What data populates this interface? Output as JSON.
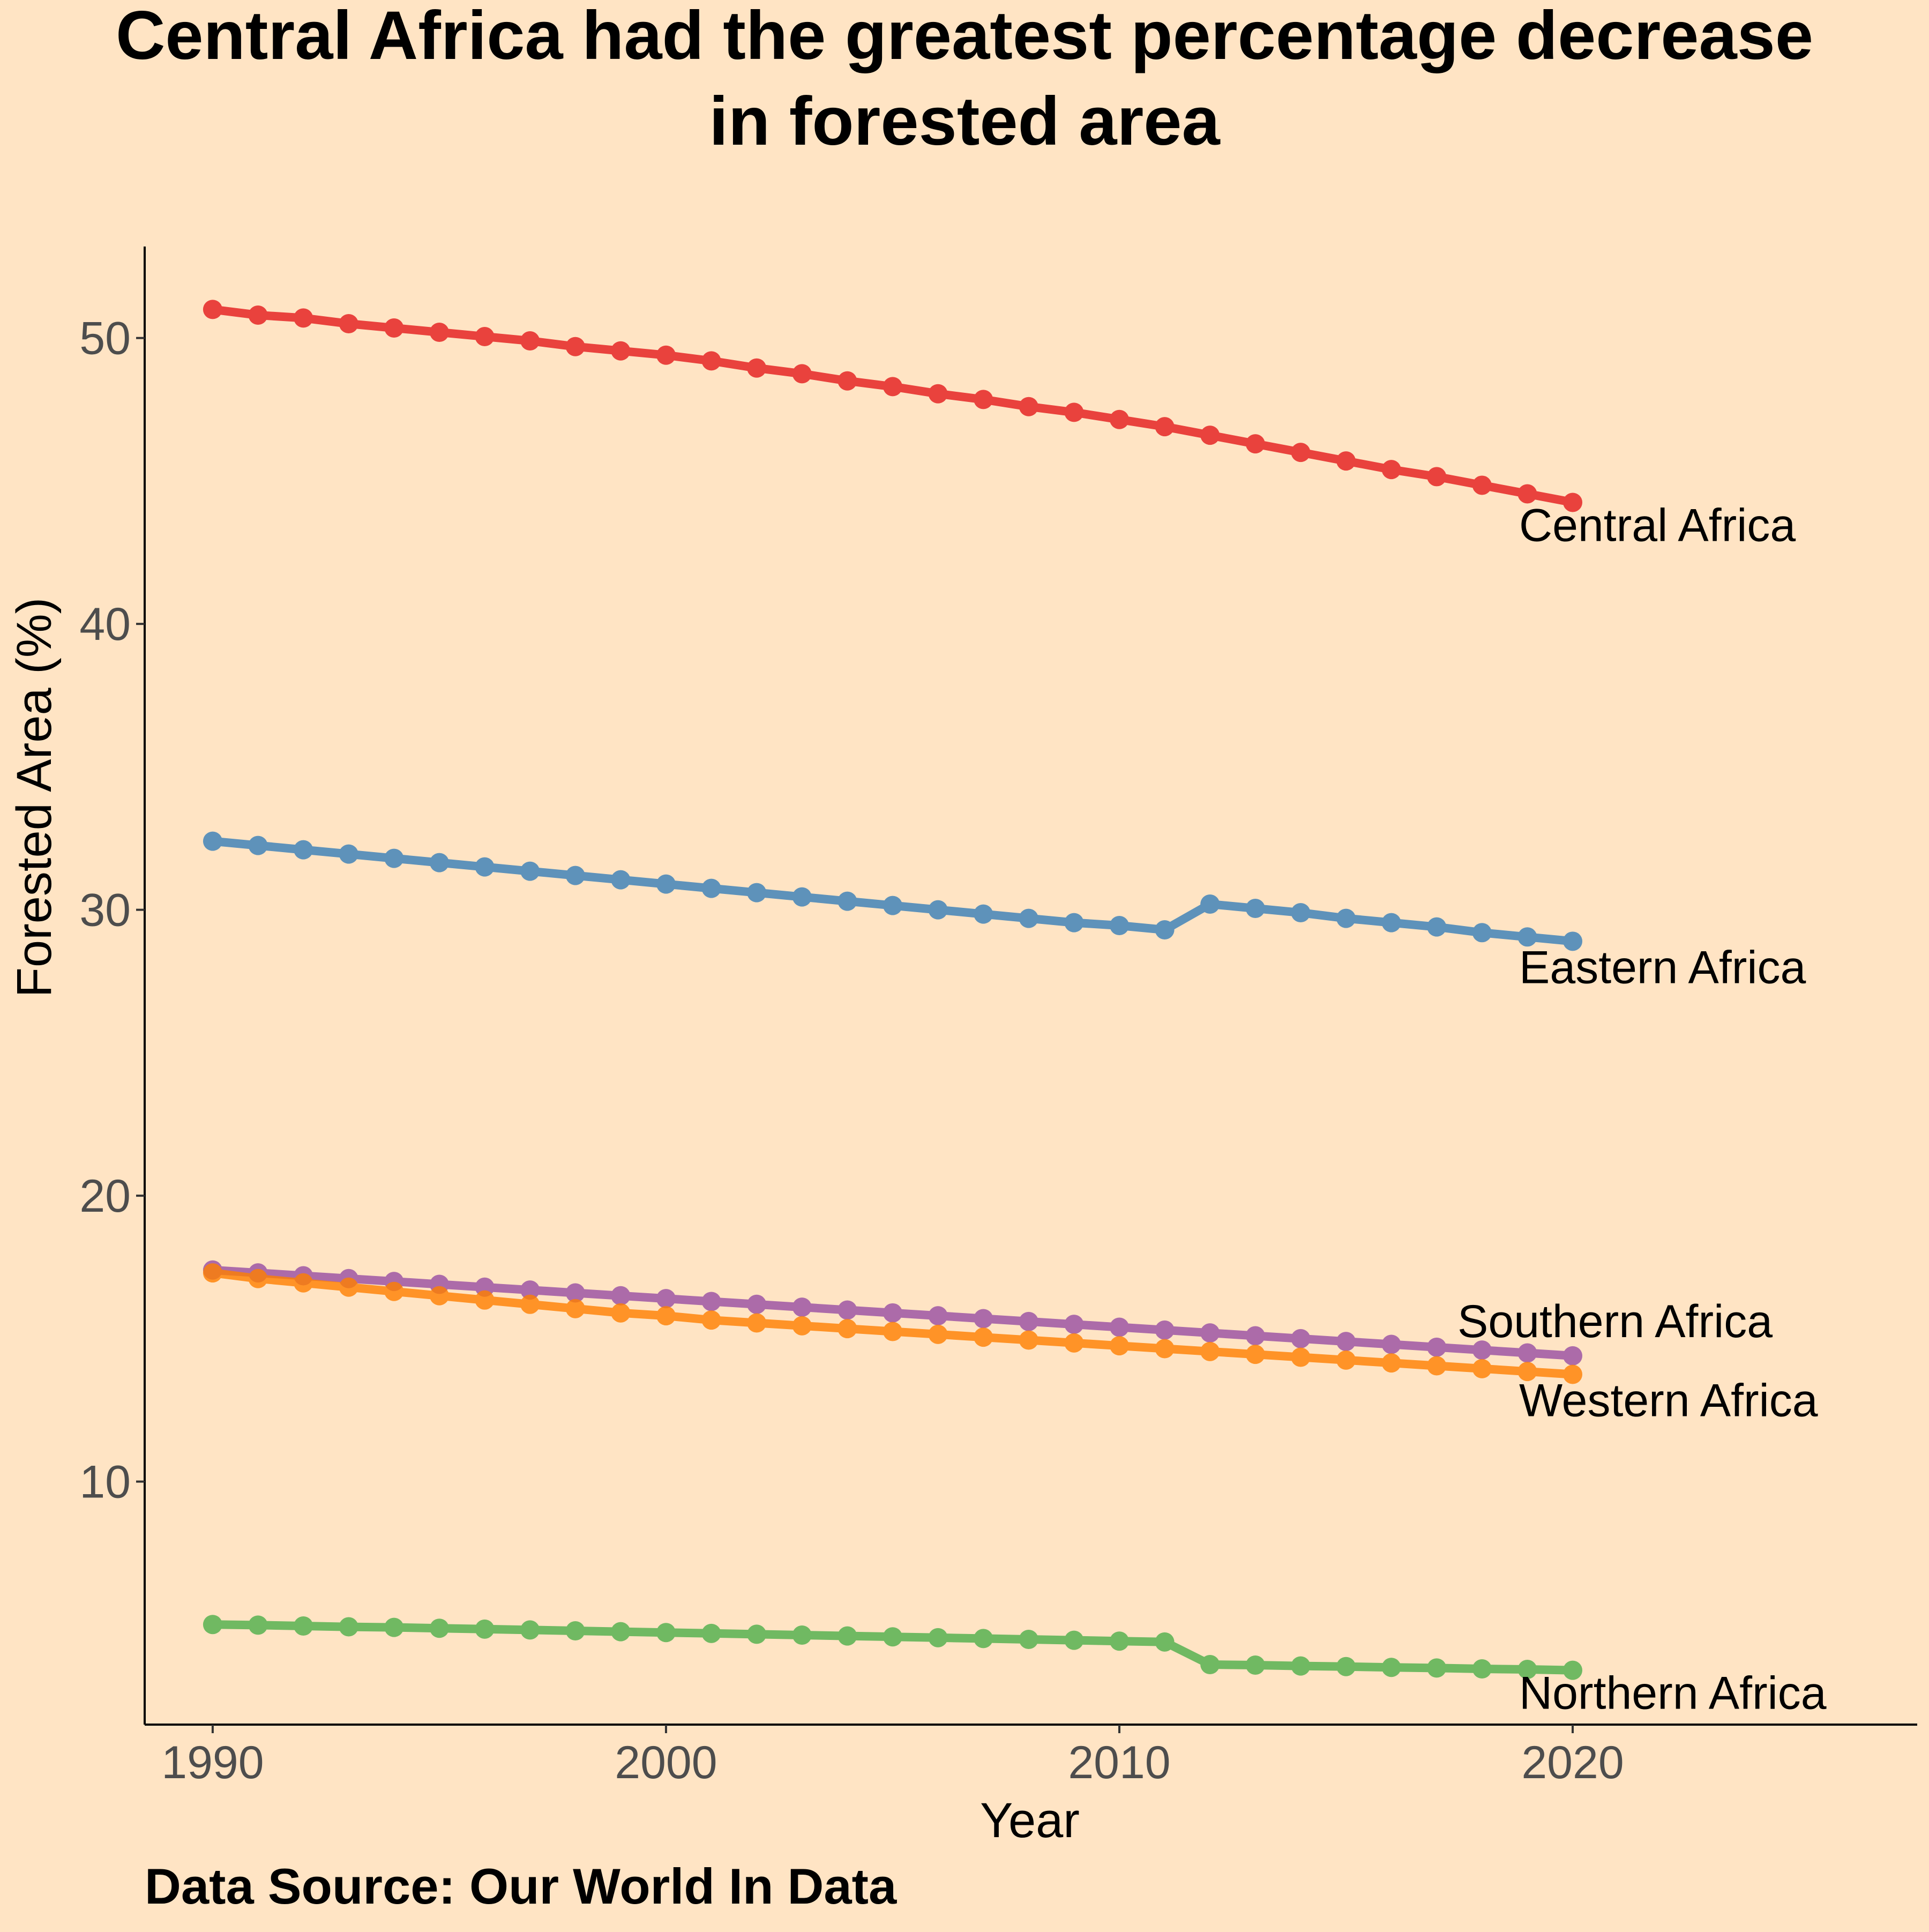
{
  "chart_data": {
    "type": "line",
    "title_lines": [
      "Central Africa had the greatest percentage decrease",
      "in forested area"
    ],
    "xlabel": "Year",
    "ylabel": "Forested Area (%)",
    "caption": "Data Source: Our World In Data",
    "xlim": [
      1988.5,
      2027.6
    ],
    "ylim": [
      1.5,
      53.2
    ],
    "x_ticks": [
      1990,
      2000,
      2010,
      2020
    ],
    "y_ticks": [
      10,
      20,
      30,
      40,
      50
    ],
    "grid": false,
    "x": [
      1990,
      1991,
      1992,
      1993,
      1994,
      1995,
      1996,
      1997,
      1998,
      1999,
      2000,
      2001,
      2002,
      2003,
      2004,
      2005,
      2006,
      2007,
      2008,
      2009,
      2010,
      2011,
      2012,
      2013,
      2014,
      2015,
      2016,
      2017,
      2018,
      2019,
      2020
    ],
    "series": [
      {
        "name": "Central Africa",
        "color": "#E41A1C",
        "values": [
          51.0,
          50.8,
          50.7,
          50.5,
          50.35,
          50.2,
          50.05,
          49.9,
          49.7,
          49.55,
          49.4,
          49.2,
          48.95,
          48.75,
          48.5,
          48.3,
          48.05,
          47.85,
          47.6,
          47.4,
          47.15,
          46.9,
          46.6,
          46.3,
          46.0,
          45.7,
          45.4,
          45.15,
          44.85,
          44.55,
          44.25
        ]
      },
      {
        "name": "Eastern Africa",
        "color": "#377EB8",
        "values": [
          32.4,
          32.25,
          32.1,
          31.95,
          31.8,
          31.65,
          31.5,
          31.35,
          31.2,
          31.05,
          30.9,
          30.75,
          30.6,
          30.45,
          30.3,
          30.15,
          30.0,
          29.85,
          29.7,
          29.55,
          29.45,
          29.3,
          30.2,
          30.05,
          29.9,
          29.7,
          29.55,
          29.4,
          29.2,
          29.05,
          28.9
        ]
      },
      {
        "name": "Southern Africa",
        "color": "#984EA3",
        "values": [
          17.4,
          17.3,
          17.2,
          17.1,
          17.0,
          16.9,
          16.8,
          16.7,
          16.6,
          16.5,
          16.4,
          16.3,
          16.2,
          16.1,
          16.0,
          15.9,
          15.8,
          15.7,
          15.6,
          15.5,
          15.4,
          15.3,
          15.2,
          15.1,
          15.0,
          14.9,
          14.8,
          14.7,
          14.6,
          14.5,
          14.4
        ]
      },
      {
        "name": "Western Africa",
        "color": "#FF7F00",
        "values": [
          17.3,
          17.1,
          16.95,
          16.8,
          16.65,
          16.5,
          16.35,
          16.2,
          16.05,
          15.9,
          15.8,
          15.65,
          15.55,
          15.45,
          15.35,
          15.25,
          15.15,
          15.05,
          14.95,
          14.85,
          14.75,
          14.65,
          14.55,
          14.45,
          14.35,
          14.25,
          14.15,
          14.05,
          13.95,
          13.85,
          13.75
        ]
      },
      {
        "name": "Northern Africa",
        "color": "#4DAF4A",
        "values": [
          5.0,
          4.98,
          4.95,
          4.92,
          4.9,
          4.87,
          4.84,
          4.81,
          4.78,
          4.75,
          4.72,
          4.69,
          4.66,
          4.63,
          4.6,
          4.57,
          4.54,
          4.51,
          4.48,
          4.45,
          4.42,
          4.39,
          3.6,
          3.58,
          3.55,
          3.53,
          3.5,
          3.48,
          3.45,
          3.43,
          3.4
        ]
      }
    ]
  }
}
